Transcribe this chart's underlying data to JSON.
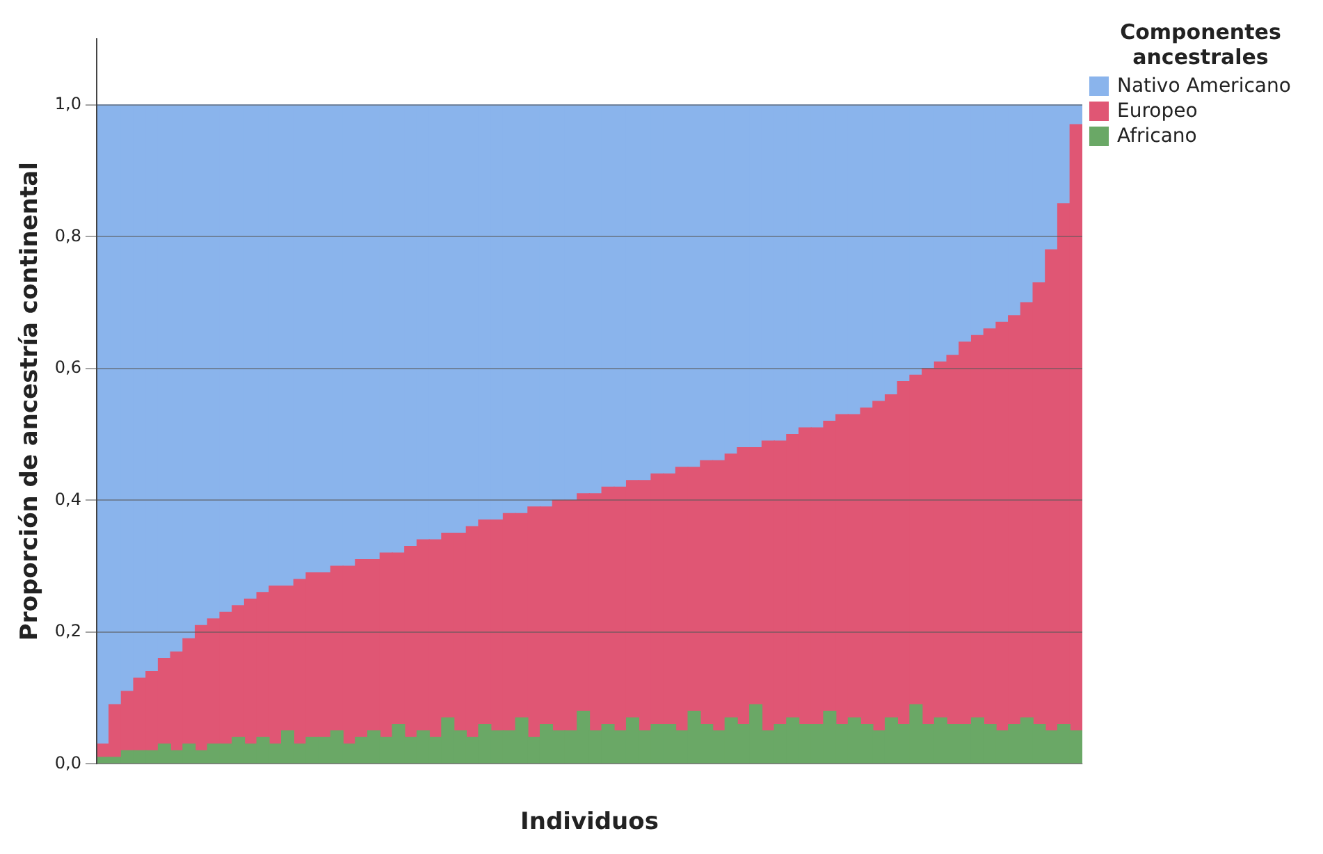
{
  "chart_data": {
    "type": "bar",
    "stacked": true,
    "xlabel": "Individuos",
    "ylabel": "Proporción de ancestría continental",
    "legend_title": "Componentes ancestrales",
    "legend": "right",
    "grid": "y",
    "categories": [
      null,
      null,
      null,
      null,
      null,
      null,
      null,
      null,
      null,
      null,
      null,
      null,
      null,
      null,
      null,
      null,
      null,
      null,
      null,
      null,
      null,
      null,
      null,
      null,
      null,
      null,
      null,
      null,
      null,
      null,
      null,
      null,
      null,
      null,
      null,
      null,
      null,
      null,
      null,
      null,
      null,
      null,
      null,
      null,
      null,
      null,
      null,
      null,
      null,
      null,
      null,
      null,
      null,
      null,
      null,
      null,
      null,
      null,
      null,
      null,
      null,
      null,
      null,
      null,
      null,
      null,
      null,
      null,
      null,
      null,
      null,
      null,
      null,
      null,
      null,
      null,
      null,
      null,
      null,
      null
    ],
    "ylim": [
      0,
      1.1
    ],
    "yticks": [
      {
        "value": 0,
        "label": "0,0"
      },
      {
        "value": 0.2,
        "label": "0,2"
      },
      {
        "value": 0.4,
        "label": "0,4"
      },
      {
        "value": 0.6,
        "label": "0,6"
      },
      {
        "value": 0.8,
        "label": "0,8"
      },
      {
        "value": 1,
        "label": "1,0"
      }
    ],
    "series": [
      {
        "name": "Africano",
        "color": "#6aa866",
        "values": [
          0.01,
          0.01,
          0.02,
          0.02,
          0.02,
          0.03,
          0.02,
          0.03,
          0.02,
          0.03,
          0.03,
          0.04,
          0.03,
          0.04,
          0.03,
          0.05,
          0.03,
          0.04,
          0.04,
          0.05,
          0.03,
          0.04,
          0.05,
          0.04,
          0.06,
          0.04,
          0.05,
          0.04,
          0.07,
          0.05,
          0.04,
          0.06,
          0.05,
          0.05,
          0.07,
          0.04,
          0.06,
          0.05,
          0.05,
          0.08,
          0.05,
          0.06,
          0.05,
          0.07,
          0.05,
          0.06,
          0.06,
          0.05,
          0.08,
          0.06,
          0.05,
          0.07,
          0.06,
          0.09,
          0.05,
          0.06,
          0.07,
          0.06,
          0.06,
          0.08,
          0.06,
          0.07,
          0.06,
          0.05,
          0.07,
          0.06,
          0.09,
          0.06,
          0.07,
          0.06,
          0.06,
          0.07,
          0.06,
          0.05,
          0.06,
          0.07,
          0.06,
          0.05,
          0.06,
          0.05
        ]
      },
      {
        "name": "Europeo",
        "color": "#e05674",
        "values": [
          0.02,
          0.08,
          0.09,
          0.11,
          0.12,
          0.13,
          0.15,
          0.16,
          0.19,
          0.19,
          0.2,
          0.2,
          0.22,
          0.22,
          0.24,
          0.22,
          0.25,
          0.25,
          0.25,
          0.25,
          0.27,
          0.27,
          0.26,
          0.28,
          0.26,
          0.29,
          0.29,
          0.3,
          0.28,
          0.3,
          0.32,
          0.31,
          0.32,
          0.33,
          0.31,
          0.35,
          0.33,
          0.35,
          0.35,
          0.33,
          0.36,
          0.36,
          0.37,
          0.36,
          0.38,
          0.38,
          0.38,
          0.4,
          0.37,
          0.4,
          0.41,
          0.4,
          0.42,
          0.39,
          0.44,
          0.43,
          0.43,
          0.45,
          0.45,
          0.44,
          0.47,
          0.46,
          0.48,
          0.5,
          0.49,
          0.52,
          0.5,
          0.54,
          0.54,
          0.56,
          0.58,
          0.58,
          0.6,
          0.62,
          0.62,
          0.63,
          0.67,
          0.73,
          0.79,
          0.92
        ]
      },
      {
        "name": "Nativo Americano",
        "color": "#8ab4ec",
        "values": [
          0.97,
          0.91,
          0.89,
          0.87,
          0.86,
          0.84,
          0.83,
          0.81,
          0.79,
          0.78,
          0.77,
          0.76,
          0.75,
          0.74,
          0.73,
          0.73,
          0.72,
          0.71,
          0.71,
          0.7,
          0.7,
          0.69,
          0.69,
          0.68,
          0.68,
          0.67,
          0.66,
          0.66,
          0.65,
          0.65,
          0.64,
          0.63,
          0.63,
          0.62,
          0.62,
          0.61,
          0.61,
          0.6,
          0.6,
          0.59,
          0.59,
          0.58,
          0.58,
          0.57,
          0.57,
          0.56,
          0.56,
          0.55,
          0.55,
          0.54,
          0.54,
          0.53,
          0.52,
          0.52,
          0.51,
          0.51,
          0.5,
          0.49,
          0.49,
          0.48,
          0.47,
          0.47,
          0.46,
          0.45,
          0.44,
          0.42,
          0.41,
          0.4,
          0.39,
          0.38,
          0.36,
          0.35,
          0.34,
          0.33,
          0.32,
          0.3,
          0.27,
          0.22,
          0.15,
          0.03
        ]
      }
    ]
  }
}
